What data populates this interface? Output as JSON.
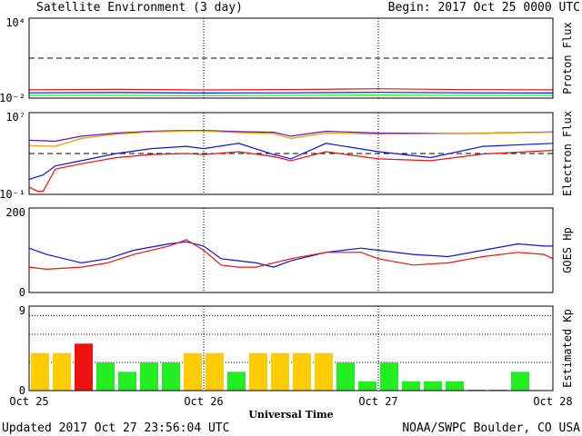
{
  "header": {
    "title": "Satellite Environment (3 day)",
    "begin": "Begin:  2017 Oct 25 0000 UTC"
  },
  "footer": {
    "updated": "Updated 2017 Oct 27 23:56:04 UTC",
    "credit": "NOAA/SWPC Boulder, CO USA",
    "x_axis_label": "Universal Time"
  },
  "x_ticks": [
    "Oct 25",
    "Oct 26",
    "Oct 27",
    "Oct 28"
  ],
  "colors": {
    "red": "#ee1111",
    "blue": "#1111dd",
    "green": "#22ee22",
    "orange": "#ee9900",
    "purple": "#6611aa",
    "kp_low": "#22ee22",
    "kp_mid": "#ffcc00",
    "kp_high": "#ee1111"
  },
  "chart_data": [
    {
      "type": "line",
      "ylabel": "Proton Flux",
      "yscale": "log",
      "ylim": [
        0.01,
        10000
      ],
      "y_ticks": [
        "10⁴",
        "10⁻²"
      ],
      "threshold": 10,
      "series": [
        {
          "color": "red",
          "x": [
            0,
            0.5,
            1,
            1.5,
            2,
            2.5,
            3
          ],
          "y": [
            0.042,
            0.045,
            0.041,
            0.044,
            0.05,
            0.043,
            0.042
          ]
        },
        {
          "color": "blue",
          "x": [
            0,
            0.5,
            1,
            1.5,
            2,
            2.5,
            3
          ],
          "y": [
            0.025,
            0.026,
            0.024,
            0.025,
            0.027,
            0.025,
            0.024
          ]
        },
        {
          "color": "green",
          "x": [
            0,
            0.5,
            1,
            1.5,
            2,
            2.5,
            3
          ],
          "y": [
            0.016,
            0.016,
            0.015,
            0.016,
            0.017,
            0.016,
            0.016
          ]
        }
      ]
    },
    {
      "type": "line",
      "ylabel": "Electron Flux",
      "yscale": "log",
      "ylim": [
        0.1,
        10000000
      ],
      "y_ticks": [
        "10⁷",
        "10⁻¹"
      ],
      "threshold": 1000,
      "series": [
        {
          "color": "purple",
          "x": [
            0,
            0.15,
            0.3,
            0.5,
            0.7,
            0.9,
            1.0,
            1.2,
            1.4,
            1.5,
            1.7,
            2.0,
            2.5,
            3.0
          ],
          "y": [
            20000,
            16000,
            50000,
            100000,
            150000,
            180000,
            180000,
            140000,
            120000,
            50000,
            150000,
            100000,
            90000,
            130000
          ]
        },
        {
          "color": "orange",
          "x": [
            0,
            0.15,
            0.3,
            0.5,
            0.7,
            0.9,
            1.0,
            1.2,
            1.4,
            1.5,
            1.7,
            2.0,
            2.5,
            3.0
          ],
          "y": [
            6000,
            5000,
            30000,
            80000,
            130000,
            160000,
            160000,
            110000,
            90000,
            30000,
            100000,
            80000,
            90000,
            120000
          ]
        },
        {
          "color": "blue",
          "x": [
            0,
            0.08,
            0.15,
            0.3,
            0.5,
            0.7,
            0.9,
            1.0,
            1.2,
            1.4,
            1.5,
            1.7,
            2.0,
            2.3,
            2.6,
            3.0
          ],
          "y": [
            3,
            8,
            60,
            200,
            1000,
            3000,
            5000,
            3000,
            10000,
            800,
            300,
            10000,
            1500,
            400,
            5000,
            10000
          ]
        },
        {
          "color": "red",
          "x": [
            0,
            0.05,
            0.08,
            0.15,
            0.3,
            0.5,
            0.7,
            0.9,
            1.0,
            1.2,
            1.4,
            1.5,
            1.7,
            2.0,
            2.3,
            2.6,
            3.0
          ],
          "y": [
            0.5,
            0.2,
            0.2,
            30,
            100,
            400,
            800,
            1000,
            800,
            1500,
            500,
            200,
            1500,
            300,
            200,
            900,
            2000
          ]
        }
      ]
    },
    {
      "type": "line",
      "ylabel": "GOES Hp",
      "yscale": "linear",
      "ylim": [
        0,
        200
      ],
      "y_ticks": [
        "200",
        "0"
      ],
      "series": [
        {
          "color": "blue",
          "x": [
            0,
            0.1,
            0.3,
            0.45,
            0.6,
            0.8,
            0.9,
            1.0,
            1.1,
            1.2,
            1.3,
            1.4,
            1.5,
            1.7,
            1.9,
            2.0,
            2.2,
            2.4,
            2.6,
            2.8,
            2.95,
            3.0
          ],
          "y": [
            105,
            90,
            70,
            80,
            100,
            115,
            120,
            110,
            80,
            75,
            70,
            60,
            75,
            95,
            105,
            100,
            90,
            85,
            100,
            115,
            110,
            110
          ]
        },
        {
          "color": "red",
          "x": [
            0,
            0.1,
            0.3,
            0.45,
            0.6,
            0.8,
            0.9,
            1.0,
            1.1,
            1.2,
            1.3,
            1.4,
            1.5,
            1.7,
            1.9,
            2.0,
            2.2,
            2.4,
            2.6,
            2.8,
            2.95,
            3.0
          ],
          "y": [
            60,
            55,
            60,
            70,
            90,
            110,
            125,
            100,
            65,
            60,
            60,
            70,
            80,
            95,
            95,
            80,
            65,
            70,
            85,
            95,
            90,
            80
          ]
        }
      ]
    },
    {
      "type": "bar",
      "ylabel": "Estimated Kp",
      "ylim": [
        0,
        9
      ],
      "y_ticks": [
        "9",
        "0"
      ],
      "values": [
        4,
        4,
        5,
        3,
        2,
        3,
        3,
        4,
        4,
        2,
        4,
        4,
        4,
        4,
        3,
        1,
        3,
        1,
        1,
        1,
        0.1,
        0.1,
        2,
        0
      ]
    }
  ]
}
